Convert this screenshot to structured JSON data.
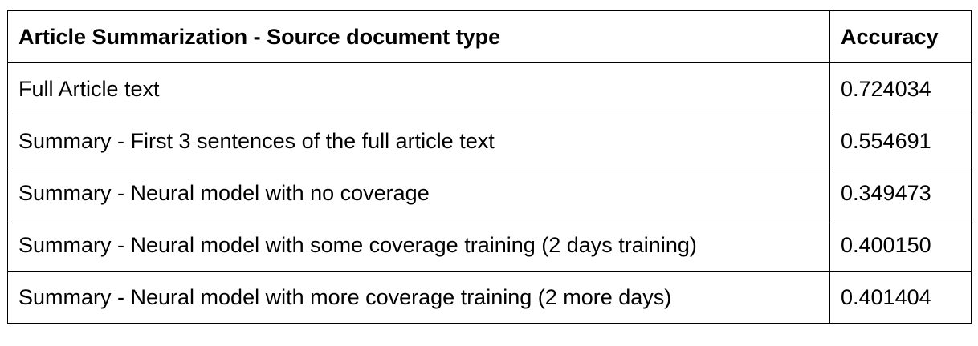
{
  "table": {
    "headers": [
      "Article Summarization - Source document type",
      "Accuracy"
    ],
    "rows": [
      [
        "Full Article text",
        "0.724034"
      ],
      [
        "Summary - First 3 sentences of the full article text",
        "0.554691"
      ],
      [
        "Summary - Neural model with no coverage",
        "0.349473"
      ],
      [
        "Summary - Neural model with some coverage training (2 days training)",
        "0.400150"
      ],
      [
        "Summary - Neural model with more coverage training (2 more days)",
        "0.401404"
      ]
    ]
  }
}
